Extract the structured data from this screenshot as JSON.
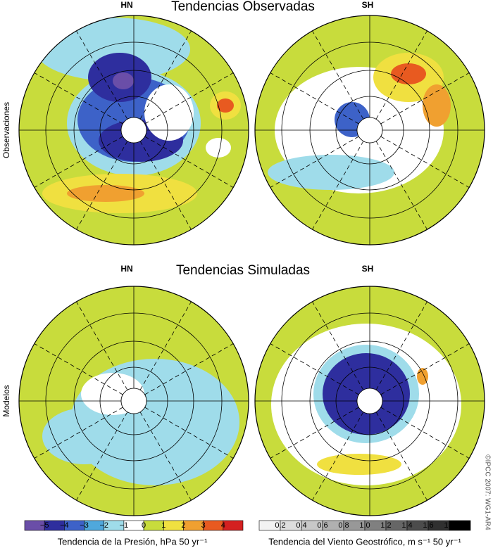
{
  "top": {
    "title": "Tendencias Observadas",
    "row_label": "Observaciones",
    "panels": [
      "HN",
      "SH"
    ]
  },
  "bottom": {
    "title": "Tendencias Simuladas",
    "row_label": "Modelos",
    "panels": [
      "HN",
      "SH"
    ]
  },
  "pressure_colorbar": {
    "ticks": [
      "−5",
      "−4",
      "−3",
      "−2",
      "−1",
      "0",
      "1",
      "2",
      "3",
      "4"
    ],
    "colors": [
      "#6a4ea8",
      "#2e2e9e",
      "#3d62c8",
      "#4fa8dc",
      "#9fdcea",
      "#ffffff",
      "#c8dc3c",
      "#f0e040",
      "#f0a030",
      "#e85a20",
      "#d42020"
    ],
    "label": "Tendencia de la Presión, hPa 50 yr⁻¹"
  },
  "wind_colorbar": {
    "ticks": [
      "0.2",
      "0.4",
      "0.6",
      "0.8",
      "1.0",
      "1.2",
      "1.4",
      "1.6",
      "1.8"
    ],
    "colors": [
      "#f2f2f2",
      "#dddddd",
      "#c8c8c8",
      "#b0b0b0",
      "#989898",
      "#808080",
      "#666666",
      "#4c4c4c",
      "#303030",
      "#000000"
    ],
    "label": "Tendencia del Viento Geostrófico, m s⁻¹ 50 yr⁻¹"
  },
  "credit": "©IPCC 2007: WG1-AR4"
}
